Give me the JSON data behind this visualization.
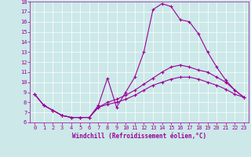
{
  "xlabel": "Windchill (Refroidissement éolien,°C)",
  "bg_color": "#cce8e8",
  "line_color": "#990099",
  "xlim": [
    -0.5,
    23.5
  ],
  "ylim": [
    6,
    18
  ],
  "yticks": [
    6,
    7,
    8,
    9,
    10,
    11,
    12,
    13,
    14,
    15,
    16,
    17,
    18
  ],
  "xticks": [
    0,
    1,
    2,
    3,
    4,
    5,
    6,
    7,
    8,
    9,
    10,
    11,
    12,
    13,
    14,
    15,
    16,
    17,
    18,
    19,
    20,
    21,
    22,
    23
  ],
  "line1_x": [
    0,
    1,
    2,
    3,
    4,
    5,
    6,
    7,
    8,
    9,
    10,
    11,
    12,
    13,
    14,
    15,
    16,
    17,
    18,
    19,
    20,
    21,
    22,
    23
  ],
  "line1_y": [
    8.8,
    7.7,
    7.2,
    6.7,
    6.5,
    6.5,
    6.5,
    7.7,
    10.4,
    7.5,
    9.0,
    10.5,
    13.0,
    17.2,
    17.8,
    17.5,
    16.2,
    16.0,
    14.8,
    13.0,
    11.5,
    10.2,
    9.2,
    8.5
  ],
  "line2_x": [
    0,
    1,
    2,
    3,
    4,
    5,
    6,
    7,
    8,
    9,
    10,
    11,
    12,
    13,
    14,
    15,
    16,
    17,
    18,
    19,
    20,
    21,
    22,
    23
  ],
  "line2_y": [
    8.8,
    7.7,
    7.2,
    6.7,
    6.5,
    6.5,
    6.5,
    7.5,
    8.0,
    8.3,
    8.7,
    9.2,
    9.8,
    10.4,
    11.0,
    11.5,
    11.7,
    11.5,
    11.2,
    11.0,
    10.5,
    10.0,
    9.2,
    8.5
  ],
  "line3_x": [
    0,
    1,
    2,
    3,
    4,
    5,
    6,
    7,
    8,
    9,
    10,
    11,
    12,
    13,
    14,
    15,
    16,
    17,
    18,
    19,
    20,
    21,
    22,
    23
  ],
  "line3_y": [
    8.8,
    7.7,
    7.2,
    6.7,
    6.5,
    6.5,
    6.5,
    7.5,
    7.8,
    8.0,
    8.3,
    8.7,
    9.2,
    9.7,
    10.0,
    10.3,
    10.5,
    10.5,
    10.3,
    10.0,
    9.7,
    9.3,
    8.8,
    8.5
  ],
  "tick_fontsize": 5,
  "xlabel_fontsize": 5.5,
  "marker_size": 3,
  "linewidth": 0.8,
  "grid_color": "#ffffff",
  "spine_color": "#990099"
}
